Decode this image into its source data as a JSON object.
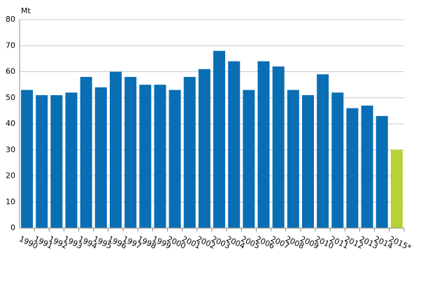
{
  "chart_data": {
    "type": "bar",
    "y_label": "Mt",
    "categories": [
      "1990",
      "1991",
      "1992",
      "1993",
      "1994",
      "1995",
      "1996",
      "1997",
      "1998",
      "1999",
      "2000",
      "2001",
      "2002",
      "2003",
      "2004",
      "2005",
      "2006",
      "2007",
      "2008",
      "2009",
      "2010",
      "2011",
      "2012",
      "2013",
      "2014",
      "2015*"
    ],
    "values": [
      53,
      51,
      51,
      52,
      58,
      54,
      60,
      58,
      55,
      55,
      53,
      58,
      61,
      68,
      64,
      53,
      64,
      62,
      53,
      51,
      59,
      52,
      46,
      47,
      43,
      30
    ],
    "colors": [
      "#0a6eb4",
      "#0a6eb4",
      "#0a6eb4",
      "#0a6eb4",
      "#0a6eb4",
      "#0a6eb4",
      "#0a6eb4",
      "#0a6eb4",
      "#0a6eb4",
      "#0a6eb4",
      "#0a6eb4",
      "#0a6eb4",
      "#0a6eb4",
      "#0a6eb4",
      "#0a6eb4",
      "#0a6eb4",
      "#0a6eb4",
      "#0a6eb4",
      "#0a6eb4",
      "#0a6eb4",
      "#0a6eb4",
      "#0a6eb4",
      "#0a6eb4",
      "#0a6eb4",
      "#0a6eb4",
      "#b5d334"
    ],
    "ylim": [
      0,
      80
    ],
    "yticks": [
      0,
      10,
      20,
      30,
      40,
      50,
      60,
      70,
      80
    ],
    "grid": true
  }
}
